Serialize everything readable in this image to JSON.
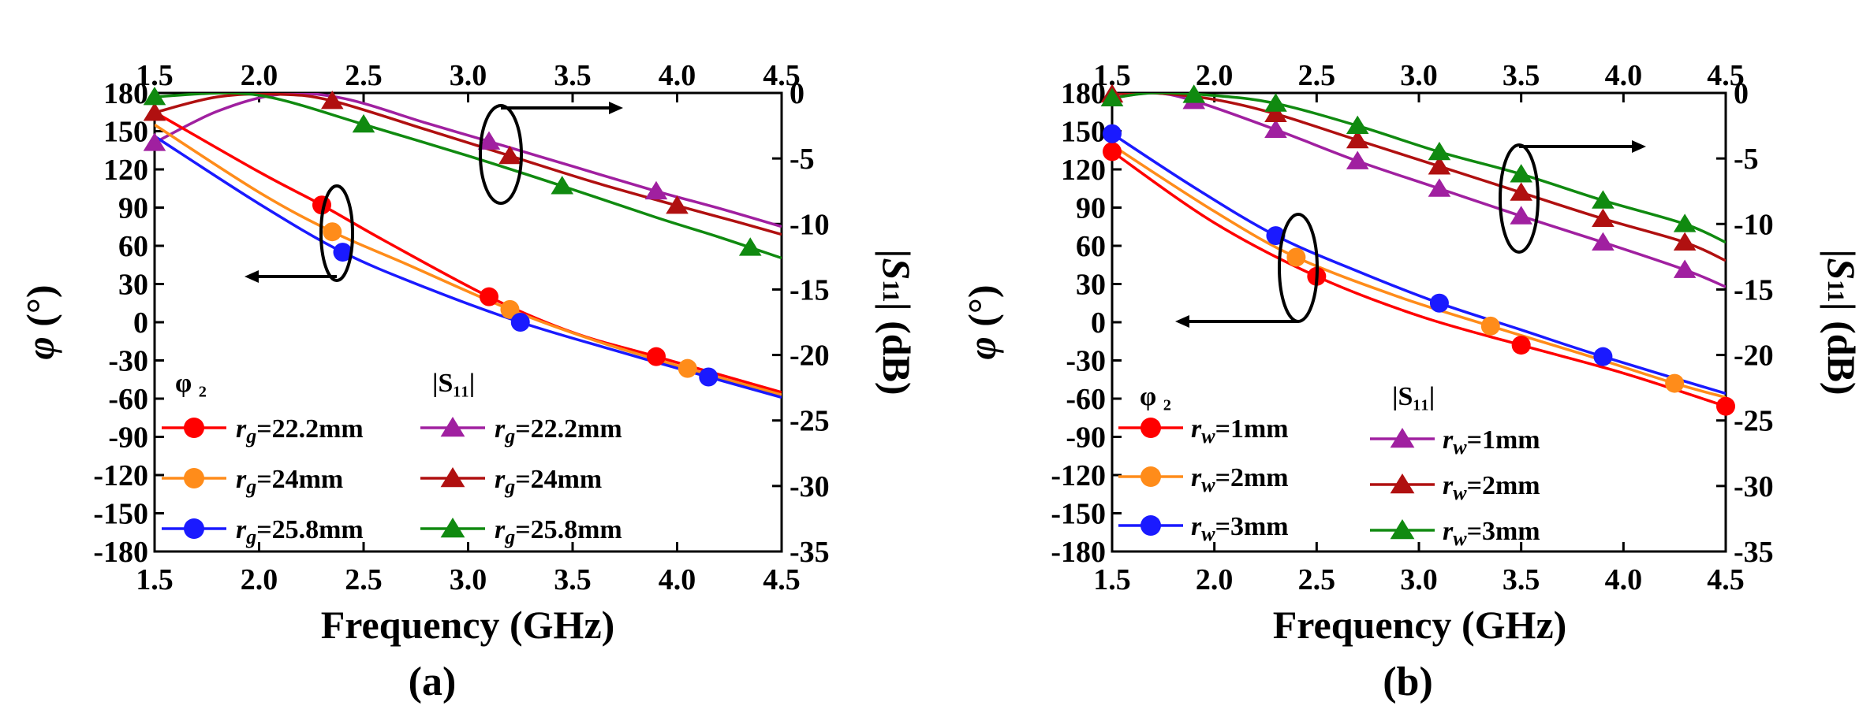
{
  "chart_data": [
    {
      "panel": "a",
      "type": "line",
      "caption": "(a)",
      "xlabel": "Frequency (GHz)",
      "ylabel_left": "φ (°)",
      "ylabel_right": "|S₁₁| (dB)",
      "xlim": [
        1.5,
        4.5
      ],
      "ylim_left": [
        -180,
        180
      ],
      "ylim_right": [
        -35,
        0
      ],
      "xticks": [
        "1.5",
        "2.0",
        "2.5",
        "3.0",
        "3.5",
        "4.0",
        "4.5"
      ],
      "yticks_left": [
        "-180",
        "-150",
        "-120",
        "-90",
        "-60",
        "-30",
        "0",
        "30",
        "60",
        "90",
        "120",
        "150",
        "180"
      ],
      "yticks_right": [
        "-35",
        "-30",
        "-25",
        "-20",
        "-15",
        "-10",
        "-5",
        "0"
      ],
      "legend_phase_title": "φ ₂",
      "legend_s11_title": "|S₁₁|",
      "phase_series": [
        {
          "name": "rg=22.2mm",
          "param": "g",
          "value": "=22.2mm",
          "color": "#ff0000",
          "x": [
            1.5,
            2.0,
            2.3,
            2.6,
            3.1,
            3.5,
            3.9,
            4.5
          ],
          "y": [
            165,
            118,
            92,
            64,
            20,
            -8,
            -27,
            -55
          ],
          "marker_x": [
            2.3,
            3.1,
            3.9
          ]
        },
        {
          "name": "rg=24mm",
          "param": "g",
          "value": "=24mm",
          "color": "#ff8c1a",
          "x": [
            1.5,
            2.0,
            2.35,
            2.7,
            3.2,
            3.6,
            4.0,
            4.5
          ],
          "y": [
            155,
            102,
            71,
            46,
            10,
            -14,
            -34,
            -57
          ],
          "marker_x": [
            2.35,
            3.2,
            4.05
          ]
        },
        {
          "name": "rg=25.8mm",
          "param": "g",
          "value": "=25.8mm",
          "color": "#1a1aff",
          "x": [
            1.5,
            2.0,
            2.4,
            2.8,
            3.25,
            3.7,
            4.15,
            4.5
          ],
          "y": [
            146,
            93,
            55,
            27,
            0,
            -22,
            -43,
            -59
          ],
          "marker_x": [
            2.4,
            3.25,
            4.15
          ]
        }
      ],
      "s11_series": [
        {
          "name": "rg=22.2mm",
          "param": "g",
          "value": "=22.2mm",
          "color": "#a020a0",
          "x": [
            1.5,
            1.8,
            2.1,
            2.4,
            2.8,
            3.1,
            3.5,
            3.9,
            4.2,
            4.5
          ],
          "y": [
            -3.8,
            -1.4,
            -0.1,
            -0.4,
            -2.3,
            -3.7,
            -5.6,
            -7.5,
            -8.8,
            -10.2
          ],
          "marker_x": [
            1.5,
            3.1,
            3.9
          ]
        },
        {
          "name": "rg=24mm",
          "param": "g",
          "value": "=24mm",
          "color": "#b01010",
          "x": [
            1.5,
            1.8,
            2.1,
            2.35,
            2.8,
            3.2,
            3.6,
            4.0,
            4.3,
            4.5
          ],
          "y": [
            -1.5,
            -0.3,
            -0.1,
            -0.6,
            -2.8,
            -4.8,
            -6.8,
            -8.6,
            -9.9,
            -10.8
          ],
          "marker_x": [
            1.5,
            2.35,
            3.2,
            4.0
          ]
        },
        {
          "name": "rg=25.8mm",
          "param": "g",
          "value": "=25.8mm",
          "color": "#108a10",
          "x": [
            1.5,
            1.85,
            2.1,
            2.5,
            3.0,
            3.45,
            3.9,
            4.2,
            4.5
          ],
          "y": [
            -0.3,
            0.0,
            -0.5,
            -2.4,
            -4.8,
            -7.1,
            -9.5,
            -11.0,
            -12.6
          ],
          "marker_x": [
            1.5,
            2.5,
            3.45,
            4.35
          ]
        }
      ]
    },
    {
      "panel": "b",
      "type": "line",
      "caption": "(b)",
      "xlabel": "Frequency (GHz)",
      "ylabel_left": "φ (°)",
      "ylabel_right": "|S₁₁| (dB)",
      "xlim": [
        1.5,
        4.5
      ],
      "ylim_left": [
        -180,
        180
      ],
      "ylim_right": [
        -35,
        0
      ],
      "xticks": [
        "1.5",
        "2.0",
        "2.5",
        "3.0",
        "3.5",
        "4.0",
        "4.5"
      ],
      "yticks_left": [
        "-180",
        "-150",
        "-120",
        "-90",
        "-60",
        "-30",
        "0",
        "30",
        "60",
        "90",
        "120",
        "150",
        "180"
      ],
      "yticks_right": [
        "-35",
        "-30",
        "-25",
        "-20",
        "-15",
        "-10",
        "-5",
        "0"
      ],
      "legend_phase_title": "φ ₂",
      "legend_s11_title": "|S₁₁|",
      "phase_series": [
        {
          "name": "rw=1mm",
          "param": "w",
          "value": "=1mm",
          "color": "#ff0000",
          "x": [
            1.5,
            2.0,
            2.5,
            3.0,
            3.5,
            4.0,
            4.5
          ],
          "y": [
            134,
            78,
            36,
            5,
            -18,
            -40,
            -66
          ],
          "marker_x": [
            1.5,
            2.5,
            3.5,
            4.5
          ]
        },
        {
          "name": "rw=2mm",
          "param": "w",
          "value": "=2mm",
          "color": "#ff8c1a",
          "x": [
            1.5,
            2.0,
            2.4,
            2.9,
            3.35,
            3.8,
            4.25,
            4.5
          ],
          "y": [
            139,
            87,
            51,
            20,
            -3,
            -25,
            -48,
            -59
          ],
          "marker_x": [
            2.4,
            3.35,
            4.25
          ]
        },
        {
          "name": "rw=3mm",
          "param": "w",
          "value": "=3mm",
          "color": "#1a1aff",
          "x": [
            1.5,
            1.9,
            2.3,
            2.7,
            3.1,
            3.5,
            3.9,
            4.5
          ],
          "y": [
            148,
            106,
            68,
            40,
            15,
            -6,
            -27,
            -56
          ],
          "marker_x": [
            1.5,
            2.3,
            3.1,
            3.9
          ]
        }
      ],
      "s11_series": [
        {
          "name": "rw=1mm",
          "param": "w",
          "value": "=1mm",
          "color": "#a020a0",
          "x": [
            1.5,
            1.7,
            1.9,
            2.3,
            2.7,
            3.1,
            3.5,
            3.9,
            4.3,
            4.5
          ],
          "y": [
            -0.4,
            0.0,
            -0.6,
            -2.8,
            -5.2,
            -7.3,
            -9.4,
            -11.4,
            -13.5,
            -14.8
          ],
          "marker_x": [
            1.5,
            1.9,
            2.3,
            2.7,
            3.1,
            3.5,
            3.9,
            4.3
          ]
        },
        {
          "name": "rw=2mm",
          "param": "w",
          "value": "=2mm",
          "color": "#b01010",
          "x": [
            1.5,
            1.7,
            2.0,
            2.3,
            2.7,
            3.1,
            3.5,
            3.9,
            4.3,
            4.5
          ],
          "y": [
            -0.1,
            0.0,
            -0.5,
            -1.6,
            -3.6,
            -5.6,
            -7.6,
            -9.6,
            -11.4,
            -12.8
          ],
          "marker_x": [
            1.5,
            2.3,
            2.7,
            3.1,
            3.5,
            3.9,
            4.3
          ]
        },
        {
          "name": "rw=3mm",
          "param": "w",
          "value": "=3mm",
          "color": "#108a10",
          "x": [
            1.5,
            1.7,
            2.0,
            2.3,
            2.7,
            3.1,
            3.5,
            3.9,
            4.3,
            4.5
          ],
          "y": [
            -0.4,
            0.0,
            -0.2,
            -0.8,
            -2.5,
            -4.5,
            -6.2,
            -8.2,
            -10.0,
            -11.4
          ],
          "marker_x": [
            1.5,
            1.9,
            2.3,
            2.7,
            3.1,
            3.5,
            3.9,
            4.3
          ]
        }
      ]
    }
  ]
}
